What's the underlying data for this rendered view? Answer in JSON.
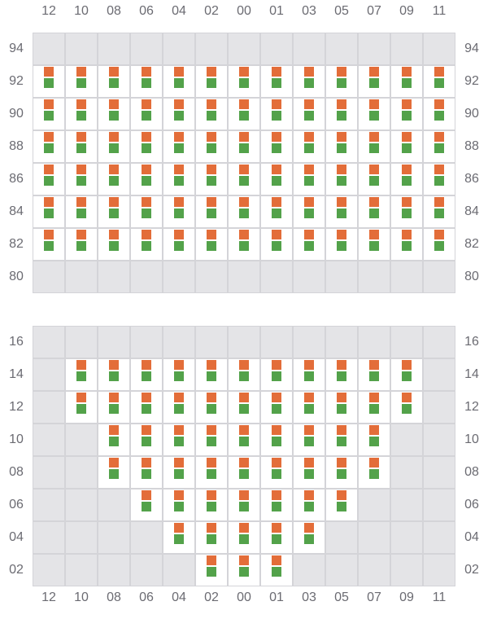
{
  "colors": {
    "unavailable": "#e4e4e7",
    "available": "#ffffff",
    "grid": "#d4d4d8",
    "marker_top": "#e36d39",
    "marker_bottom": "#53a24a"
  },
  "column_labels": [
    "12",
    "10",
    "08",
    "06",
    "04",
    "02",
    "00",
    "01",
    "03",
    "05",
    "07",
    "09",
    "11"
  ],
  "sections": [
    {
      "rows": [
        {
          "label": "94",
          "active": []
        },
        {
          "label": "92",
          "active": [
            "12",
            "10",
            "08",
            "06",
            "04",
            "02",
            "00",
            "01",
            "03",
            "05",
            "07",
            "09",
            "11"
          ]
        },
        {
          "label": "90",
          "active": [
            "12",
            "10",
            "08",
            "06",
            "04",
            "02",
            "00",
            "01",
            "03",
            "05",
            "07",
            "09",
            "11"
          ]
        },
        {
          "label": "88",
          "active": [
            "12",
            "10",
            "08",
            "06",
            "04",
            "02",
            "00",
            "01",
            "03",
            "05",
            "07",
            "09",
            "11"
          ]
        },
        {
          "label": "86",
          "active": [
            "12",
            "10",
            "08",
            "06",
            "04",
            "02",
            "00",
            "01",
            "03",
            "05",
            "07",
            "09",
            "11"
          ]
        },
        {
          "label": "84",
          "active": [
            "12",
            "10",
            "08",
            "06",
            "04",
            "02",
            "00",
            "01",
            "03",
            "05",
            "07",
            "09",
            "11"
          ]
        },
        {
          "label": "82",
          "active": [
            "12",
            "10",
            "08",
            "06",
            "04",
            "02",
            "00",
            "01",
            "03",
            "05",
            "07",
            "09",
            "11"
          ]
        },
        {
          "label": "80",
          "active": []
        }
      ]
    },
    {
      "rows": [
        {
          "label": "16",
          "active": []
        },
        {
          "label": "14",
          "active": [
            "10",
            "08",
            "06",
            "04",
            "02",
            "00",
            "01",
            "03",
            "05",
            "07",
            "09"
          ]
        },
        {
          "label": "12",
          "active": [
            "10",
            "08",
            "06",
            "04",
            "02",
            "00",
            "01",
            "03",
            "05",
            "07",
            "09"
          ]
        },
        {
          "label": "10",
          "active": [
            "08",
            "06",
            "04",
            "02",
            "00",
            "01",
            "03",
            "05",
            "07"
          ]
        },
        {
          "label": "08",
          "active": [
            "08",
            "06",
            "04",
            "02",
            "00",
            "01",
            "03",
            "05",
            "07"
          ]
        },
        {
          "label": "06",
          "active": [
            "06",
            "04",
            "02",
            "00",
            "01",
            "03",
            "05"
          ]
        },
        {
          "label": "04",
          "active": [
            "04",
            "02",
            "00",
            "01",
            "03"
          ]
        },
        {
          "label": "02",
          "active": [
            "02",
            "00",
            "01"
          ]
        }
      ]
    }
  ]
}
